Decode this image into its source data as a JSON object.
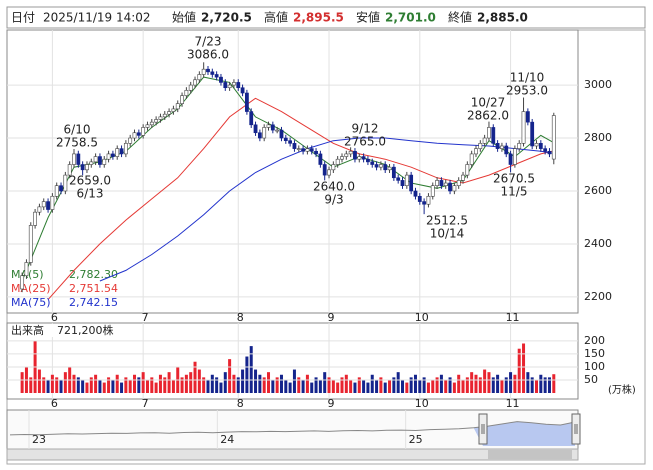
{
  "header": {
    "date_label": "日付",
    "datetime": "2025/11/19 14:02",
    "open_label": "始値",
    "open": {
      "value": 2720.5,
      "label": "2,720.5"
    },
    "high_label": "高値",
    "high": {
      "value": 2895.5,
      "label": "2,895.5"
    },
    "low_label": "安値",
    "low": {
      "value": 2701.0,
      "label": "2,701.0"
    },
    "close_label": "終値",
    "close": {
      "value": 2885.0,
      "label": "2,885.0"
    }
  },
  "chart_data": {
    "type": "candlestick",
    "open": [
      2230,
      2280,
      2330,
      2470,
      2520,
      2540,
      2560,
      2530,
      2580,
      2620,
      2600,
      2660,
      2700,
      2740,
      2700,
      2680,
      2700,
      2710,
      2730,
      2700,
      2720,
      2740,
      2730,
      2760,
      2740,
      2780,
      2800,
      2820,
      2810,
      2840,
      2850,
      2860,
      2870,
      2880,
      2890,
      2900,
      2910,
      2930,
      2960,
      2980,
      3000,
      3020,
      3040,
      3060,
      3050,
      3040,
      3030,
      3010,
      2990,
      3000,
      3010,
      2990,
      2970,
      2900,
      2850,
      2820,
      2800,
      2840,
      2850,
      2830,
      2830,
      2800,
      2790,
      2780,
      2760,
      2760,
      2750,
      2760,
      2750,
      2740,
      2700,
      2660,
      2680,
      2700,
      2720,
      2730,
      2740,
      2750,
      2720,
      2730,
      2720,
      2710,
      2700,
      2690,
      2700,
      2680,
      2690,
      2650,
      2640,
      2620,
      2660,
      2600,
      2580,
      2560,
      2550,
      2580,
      2620,
      2640,
      2620,
      2630,
      2600,
      2620,
      2640,
      2660,
      2700,
      2740,
      2760,
      2780,
      2800,
      2840,
      2780,
      2760,
      2770,
      2740,
      2700,
      2760,
      2780,
      2900,
      2860,
      2770,
      2780,
      2760,
      2750,
      2720.5
    ],
    "high": [
      2292,
      2342,
      2482,
      2532,
      2552,
      2572,
      2572,
      2592,
      2632,
      2632,
      2672,
      2712,
      2758.5,
      2752,
      2712,
      2712,
      2722,
      2742,
      2742,
      2732,
      2752,
      2752,
      2772,
      2772,
      2792,
      2812,
      2832,
      2832,
      2852,
      2862,
      2872,
      2882,
      2892,
      2902,
      2912,
      2922,
      2942,
      2972,
      2992,
      3012,
      3032,
      3052,
      3086,
      3072,
      3062,
      3052,
      3042,
      3022,
      3012,
      3022,
      3022,
      3002,
      2982,
      2912,
      2862,
      2832,
      2852,
      2862,
      2862,
      2842,
      2842,
      2812,
      2802,
      2792,
      2772,
      2772,
      2772,
      2772,
      2762,
      2752,
      2712,
      2692,
      2712,
      2732,
      2742,
      2752,
      2765,
      2762,
      2742,
      2742,
      2732,
      2722,
      2712,
      2712,
      2712,
      2702,
      2702,
      2662,
      2652,
      2672,
      2672,
      2612,
      2592,
      2572,
      2592,
      2632,
      2652,
      2652,
      2642,
      2642,
      2632,
      2652,
      2672,
      2712,
      2752,
      2772,
      2792,
      2812,
      2862,
      2852,
      2792,
      2782,
      2782,
      2752,
      2772,
      2792,
      2953,
      2912,
      2872,
      2792,
      2792,
      2772,
      2762,
      2895.5
    ],
    "low": [
      2218,
      2268,
      2318,
      2458,
      2508,
      2528,
      2518,
      2518,
      2568,
      2588,
      2588,
      2648,
      2688,
      2688,
      2659,
      2668,
      2688,
      2698,
      2688,
      2688,
      2708,
      2718,
      2718,
      2728,
      2728,
      2768,
      2788,
      2798,
      2798,
      2828,
      2838,
      2848,
      2858,
      2868,
      2878,
      2888,
      2898,
      2918,
      2948,
      2968,
      2988,
      3008,
      3028,
      3038,
      3028,
      3018,
      2998,
      2978,
      2978,
      2988,
      2978,
      2958,
      2888,
      2838,
      2808,
      2788,
      2788,
      2828,
      2818,
      2818,
      2788,
      2778,
      2768,
      2748,
      2748,
      2738,
      2738,
      2738,
      2728,
      2688,
      2640,
      2648,
      2668,
      2688,
      2708,
      2718,
      2728,
      2708,
      2708,
      2708,
      2698,
      2688,
      2678,
      2678,
      2668,
      2668,
      2638,
      2628,
      2608,
      2608,
      2588,
      2568,
      2548,
      2512.5,
      2538,
      2568,
      2608,
      2608,
      2608,
      2588,
      2588,
      2608,
      2628,
      2648,
      2688,
      2728,
      2748,
      2768,
      2788,
      2768,
      2748,
      2748,
      2728,
      2670.5,
      2688,
      2748,
      2768,
      2848,
      2758,
      2758,
      2748,
      2738,
      2728,
      2701
    ],
    "close": [
      2280,
      2330,
      2470,
      2520,
      2540,
      2560,
      2530,
      2580,
      2620,
      2600,
      2660,
      2700,
      2740,
      2700,
      2680,
      2700,
      2710,
      2730,
      2700,
      2720,
      2740,
      2730,
      2760,
      2740,
      2780,
      2800,
      2820,
      2810,
      2840,
      2850,
      2860,
      2870,
      2880,
      2890,
      2900,
      2910,
      2930,
      2960,
      2980,
      3000,
      3020,
      3040,
      3060,
      3050,
      3040,
      3030,
      3010,
      2990,
      3000,
      3010,
      2990,
      2970,
      2900,
      2850,
      2820,
      2800,
      2840,
      2850,
      2830,
      2830,
      2800,
      2790,
      2780,
      2760,
      2760,
      2750,
      2760,
      2750,
      2740,
      2700,
      2660,
      2680,
      2700,
      2720,
      2730,
      2740,
      2750,
      2720,
      2730,
      2720,
      2710,
      2700,
      2690,
      2700,
      2680,
      2690,
      2650,
      2640,
      2620,
      2660,
      2600,
      2580,
      2560,
      2550,
      2580,
      2620,
      2640,
      2620,
      2630,
      2600,
      2620,
      2640,
      2660,
      2700,
      2740,
      2760,
      2780,
      2800,
      2840,
      2780,
      2760,
      2770,
      2740,
      2700,
      2760,
      2780,
      2900,
      2860,
      2770,
      2780,
      2760,
      2750,
      2740,
      2885
    ],
    "up_color": "#e8242f",
    "down_color": "#14248c",
    "ylim": [
      2143,
      3208
    ],
    "yticks": [
      2200,
      2400,
      2600,
      2800,
      3000
    ],
    "xlim": [
      -3.5,
      128.6
    ],
    "xticks": [
      {
        "value": 7,
        "label": "6"
      },
      {
        "value": 28,
        "label": "7"
      },
      {
        "value": 50,
        "label": "8"
      },
      {
        "value": 71,
        "label": "9"
      },
      {
        "value": 92,
        "label": "10"
      },
      {
        "value": 113,
        "label": "11"
      }
    ],
    "grid": true,
    "moving_averages_x": [
      0,
      6,
      12,
      18,
      24,
      30,
      36,
      42,
      48,
      54,
      60,
      66,
      72,
      78,
      84,
      90,
      96,
      102,
      108,
      114,
      120,
      123
    ],
    "moving_averages": [
      {
        "name": "MA(5)",
        "color": "#2e7d32",
        "values": [
          2260,
          2500,
          2690,
          2710,
          2750,
          2840,
          2910,
          3030,
          3010,
          2880,
          2830,
          2760,
          2690,
          2730,
          2700,
          2630,
          2610,
          2640,
          2790,
          2730,
          2810,
          2782.3
        ],
        "current": {
          "value": 2782.3,
          "label": "2,782.30"
        }
      },
      {
        "name": "MA(25)",
        "color": "#e53935",
        "values": [
          null,
          2190,
          2300,
          2400,
          2490,
          2570,
          2650,
          2760,
          2880,
          2950,
          2900,
          2840,
          2780,
          2740,
          2720,
          2690,
          2650,
          2630,
          2660,
          2700,
          2740,
          2751.54
        ],
        "current": {
          "value": 2751.54,
          "label": "2,751.54"
        }
      },
      {
        "name": "MA(75)",
        "color": "#2233cc",
        "values": [
          null,
          null,
          null,
          2260,
          2300,
          2360,
          2430,
          2510,
          2600,
          2670,
          2720,
          2760,
          2790,
          2800,
          2800,
          2790,
          2780,
          2775,
          2770,
          2760,
          2750,
          2742.15
        ],
        "current": {
          "value": 2742.15,
          "label": "2,742.15"
        }
      }
    ],
    "annotations": [
      {
        "date": "7/23",
        "price": {
          "value": 3086,
          "label": "3086.0"
        }
      },
      {
        "date": "6/10",
        "price": {
          "value": 2758.5,
          "label": "2758.5"
        }
      },
      {
        "date": "6/13",
        "price": {
          "value": 2659,
          "label": "2659.0"
        }
      },
      {
        "date": "9/12",
        "price": {
          "value": 2765,
          "label": "2765.0"
        }
      },
      {
        "date": "9/3",
        "price": {
          "value": 2640,
          "label": "2640.0"
        }
      },
      {
        "date": "10/14",
        "price": {
          "value": 2512.5,
          "label": "2512.5"
        }
      },
      {
        "date": "10/27",
        "price": {
          "value": 2862,
          "label": "2862.0"
        }
      },
      {
        "date": "11/10",
        "price": {
          "value": 2953,
          "label": "2953.0"
        }
      },
      {
        "date": "11/5",
        "price": {
          "value": 2670.5,
          "label": "2670.5"
        }
      }
    ],
    "volume": {
      "title": "出来高",
      "current": {
        "value": 72.12,
        "label": "721,200株"
      },
      "unit": "(万株)",
      "values": [
        80,
        100,
        60,
        200,
        90,
        60,
        50,
        70,
        60,
        50,
        80,
        100,
        70,
        60,
        50,
        40,
        60,
        70,
        50,
        40,
        60,
        50,
        70,
        40,
        60,
        50,
        70,
        60,
        80,
        50,
        60,
        40,
        70,
        60,
        80,
        50,
        100,
        60,
        70,
        80,
        120,
        90,
        60,
        50,
        70,
        60,
        40,
        80,
        130,
        70,
        60,
        90,
        140,
        180,
        90,
        70,
        60,
        80,
        50,
        60,
        70,
        50,
        40,
        90,
        60,
        50,
        70,
        40,
        60,
        50,
        80,
        60,
        50,
        40,
        60,
        70,
        50,
        40,
        60,
        50,
        40,
        70,
        50,
        60,
        40,
        50,
        60,
        80,
        50,
        40,
        60,
        70,
        50,
        60,
        40,
        50,
        60,
        70,
        50,
        60,
        40,
        70,
        50,
        60,
        80,
        70,
        60,
        90,
        80,
        60,
        70,
        50,
        60,
        80,
        70,
        170,
        190,
        80,
        60,
        50,
        70,
        60,
        60,
        72.12
      ],
      "ylim": [
        0,
        261
      ],
      "yticks": [
        50,
        100,
        150,
        200
      ]
    },
    "navigator": {
      "values": [
        2300,
        2320,
        2310,
        2330,
        2350,
        2340,
        2360,
        2380,
        2370,
        2390,
        2400,
        2380,
        2410,
        2420,
        2400,
        2430,
        2450,
        2440,
        2460,
        2450,
        2470,
        2480,
        2460,
        2490,
        2500,
        2480,
        2510,
        2520,
        2500,
        2540,
        2560,
        2580,
        2620,
        2700,
        2800,
        2900,
        2850,
        2780,
        2750,
        2885
      ],
      "ylim": [
        1800,
        3200
      ],
      "xticks": [
        {
          "value": 2,
          "label": "23"
        },
        {
          "value": 15,
          "label": "24"
        },
        {
          "value": 28,
          "label": "25"
        }
      ]
    }
  }
}
